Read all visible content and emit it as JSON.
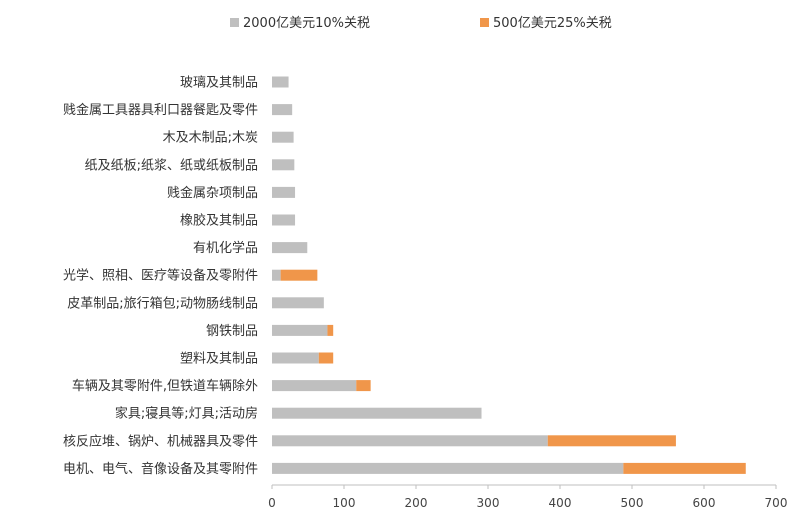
{
  "chart_data": {
    "type": "bar",
    "orientation": "horizontal",
    "stacked": true,
    "title": "",
    "xlabel": "",
    "ylabel": "",
    "xlim": [
      0,
      700
    ],
    "xticks": [
      0,
      100,
      200,
      300,
      400,
      500,
      600,
      700
    ],
    "grid": false,
    "legend_position": "top",
    "categories": [
      "玻璃及其制品",
      "贱金属工具器具利口器餐匙及零件",
      "木及木制品;木炭",
      "纸及纸板;纸浆、纸或纸板制品",
      "贱金属杂项制品",
      "橡胶及其制品",
      "有机化学品",
      "光学、照相、医疗等设备及零附件",
      "皮革制品;旅行箱包;动物肠线制品",
      "钢铁制品",
      "塑料及其制品",
      "车辆及其零附件,但铁道车辆除外",
      "家具;寝具等;灯具;活动房",
      "核反应堆、锅炉、机械器具及零件",
      "电机、电气、音像设备及其零附件"
    ],
    "series": [
      {
        "name": "2000亿美元10%关税",
        "color": "#BFBFBF",
        "values": [
          23,
          28,
          30,
          31,
          32,
          32,
          49,
          12,
          72,
          77,
          65,
          117,
          291,
          383,
          488
        ]
      },
      {
        "name": "500亿美元25%关税",
        "color": "#F0964A",
        "values": [
          0,
          0,
          0,
          0,
          0,
          0,
          0,
          51,
          0,
          8,
          20,
          20,
          0,
          178,
          170
        ]
      }
    ]
  }
}
